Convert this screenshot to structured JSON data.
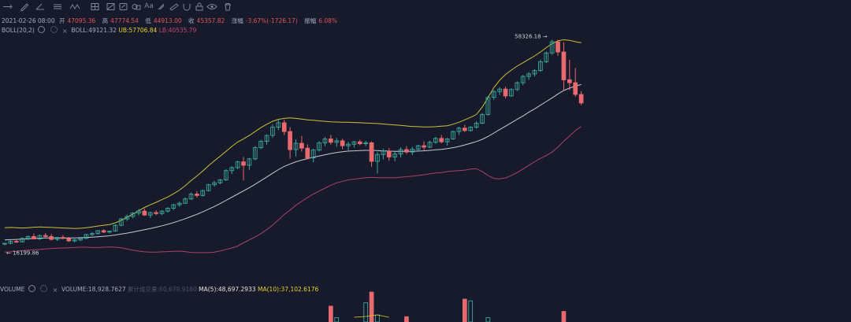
{
  "toolbar": {
    "icons": [
      "menu-icon",
      "pencil-icon",
      "angle-icon",
      "lines-icon",
      "wave-icon",
      "grid-icon",
      "pattern-icon",
      "fib-icon",
      "shapes-icon",
      "text-icon",
      "measure-icon",
      "ruler-icon",
      "magnet-icon",
      "lock-icon",
      "eye-icon",
      "trash-icon"
    ],
    "text_icon_label": "Aa"
  },
  "ohlc": {
    "date": "2021-02-26 08:00",
    "open_label": "开",
    "open": "47095.36",
    "high_label": "高",
    "high": "47774.54",
    "low_label": "低",
    "low": "44913.00",
    "close_label": "收",
    "close": "45357.82",
    "change_label": "涨幅",
    "change": "-3.67%(-1726.17)",
    "amp_label": "振幅",
    "amp": "6.08%"
  },
  "boll": {
    "name": "BOLL(20,2)",
    "mid": "BOLL:49121.32",
    "ub": "UB:57706.84",
    "lb": "LB:40535.79"
  },
  "volume": {
    "name": "VOLUME",
    "value": "VOLUME:18,928.7627",
    "faint": "累计成交量:60,679.9160",
    "ma5": "MA(5):48,697.2933",
    "ma10": "MA(10):37,102.6176"
  },
  "annotations": {
    "high": "58326.18",
    "low": "16199.86"
  },
  "colors": {
    "background": "#161a2b",
    "up": "#3aa89c",
    "down": "#e86a6e",
    "upper_band": "#c9c43a",
    "middle_band": "#c6cad6",
    "lower_band": "#a8436b"
  },
  "chart_data": {
    "type": "candlestick",
    "series": [
      {
        "name": "price",
        "ohlc": [
          [
            16500,
            16700,
            16199.86,
            16600
          ],
          [
            16600,
            17200,
            16400,
            17000
          ],
          [
            17000,
            17500,
            16700,
            16900
          ],
          [
            16900,
            17800,
            16800,
            17600
          ],
          [
            17600,
            18200,
            17300,
            18000
          ],
          [
            18000,
            18600,
            17400,
            17500
          ],
          [
            17500,
            18400,
            17300,
            18200
          ],
          [
            18200,
            18700,
            17800,
            18000
          ],
          [
            18000,
            18500,
            17200,
            17400
          ],
          [
            17400,
            17900,
            17100,
            17800
          ],
          [
            17800,
            18300,
            17400,
            17600
          ],
          [
            17600,
            17900,
            16900,
            17100
          ],
          [
            17100,
            17500,
            16800,
            17300
          ],
          [
            17300,
            17800,
            17000,
            17600
          ],
          [
            17600,
            18500,
            17500,
            18400
          ],
          [
            18400,
            18900,
            18100,
            18600
          ],
          [
            18600,
            19300,
            18400,
            19200
          ],
          [
            19200,
            19500,
            18700,
            18900
          ],
          [
            18900,
            19200,
            18600,
            19100
          ],
          [
            19100,
            20500,
            19000,
            20300
          ],
          [
            20300,
            21800,
            20100,
            21600
          ],
          [
            21600,
            22500,
            21200,
            22100
          ],
          [
            22100,
            23000,
            21700,
            22800
          ],
          [
            22800,
            23600,
            22300,
            23200
          ],
          [
            23200,
            23700,
            22200,
            22400
          ],
          [
            22400,
            23100,
            21800,
            22900
          ],
          [
            22900,
            23400,
            22400,
            22700
          ],
          [
            22700,
            23400,
            22400,
            23200
          ],
          [
            23200,
            24000,
            22900,
            23800
          ],
          [
            23800,
            24700,
            23400,
            24500
          ],
          [
            24500,
            25200,
            24100,
            24800
          ],
          [
            24800,
            26000,
            24700,
            25700
          ],
          [
            25700,
            27000,
            25500,
            26700
          ],
          [
            26700,
            27300,
            26000,
            26400
          ],
          [
            26400,
            27600,
            26200,
            27400
          ],
          [
            27400,
            28800,
            27200,
            28600
          ],
          [
            28600,
            29400,
            28200,
            29000
          ],
          [
            29000,
            29800,
            28700,
            29600
          ],
          [
            29600,
            31800,
            29400,
            31500
          ],
          [
            31500,
            32400,
            30800,
            32100
          ],
          [
            32100,
            33500,
            31800,
            33300
          ],
          [
            33300,
            34300,
            29500,
            32600
          ],
          [
            32600,
            34100,
            31600,
            33900
          ],
          [
            33900,
            36500,
            33600,
            36200
          ],
          [
            36200,
            37800,
            35900,
            37500
          ],
          [
            37500,
            38900,
            36800,
            38700
          ],
          [
            38700,
            41000,
            38200,
            40400
          ],
          [
            40400,
            41900,
            39800,
            41300
          ],
          [
            41300,
            41900,
            38800,
            39500
          ],
          [
            39500,
            40400,
            34000,
            35800
          ],
          [
            35800,
            37900,
            34400,
            37100
          ],
          [
            37100,
            38600,
            35400,
            36100
          ],
          [
            36100,
            36900,
            33800,
            34100
          ],
          [
            34100,
            36000,
            33200,
            35700
          ],
          [
            35700,
            37500,
            35400,
            37200
          ],
          [
            37200,
            38400,
            36500,
            38000
          ],
          [
            38000,
            38800,
            36800,
            37300
          ],
          [
            37300,
            38200,
            36400,
            37600
          ],
          [
            37600,
            38000,
            35900,
            36600
          ],
          [
            36600,
            37400,
            35700,
            36900
          ],
          [
            36900,
            37600,
            36200,
            37400
          ],
          [
            37400,
            37800,
            36700,
            37000
          ],
          [
            37000,
            37600,
            36500,
            37200
          ],
          [
            37200,
            37500,
            32300,
            33400
          ],
          [
            33400,
            35300,
            30900,
            34800
          ],
          [
            34800,
            36000,
            33800,
            35500
          ],
          [
            35500,
            36100,
            33500,
            34300
          ],
          [
            34300,
            35400,
            33400,
            34900
          ],
          [
            34900,
            36300,
            34200,
            35800
          ],
          [
            35800,
            36500,
            34900,
            35300
          ],
          [
            35300,
            36400,
            34700,
            35900
          ],
          [
            35900,
            36800,
            35500,
            36600
          ],
          [
            36600,
            37500,
            35600,
            36300
          ],
          [
            36300,
            37600,
            36100,
            37300
          ],
          [
            37300,
            38400,
            37000,
            38100
          ],
          [
            38100,
            38800,
            37100,
            37400
          ],
          [
            37400,
            38200,
            36600,
            38000
          ],
          [
            38000,
            39700,
            37800,
            39500
          ],
          [
            39500,
            40500,
            38800,
            40200
          ],
          [
            40200,
            40900,
            39400,
            39700
          ],
          [
            39700,
            40600,
            39500,
            40400
          ],
          [
            40400,
            41600,
            40100,
            41200
          ],
          [
            41200,
            43300,
            41000,
            43000
          ],
          [
            43000,
            46800,
            42800,
            46500
          ],
          [
            46500,
            48000,
            46000,
            47700
          ],
          [
            47700,
            48600,
            47000,
            48200
          ],
          [
            48200,
            48700,
            46300,
            46800
          ],
          [
            46800,
            48400,
            46600,
            48100
          ],
          [
            48100,
            49800,
            47800,
            49500
          ],
          [
            49500,
            51100,
            49000,
            50800
          ],
          [
            50800,
            51700,
            50100,
            51300
          ],
          [
            51300,
            52300,
            50800,
            52000
          ],
          [
            52000,
            54200,
            51700,
            53800
          ],
          [
            53800,
            55900,
            53500,
            55600
          ],
          [
            55600,
            58326.18,
            55200,
            57900
          ],
          [
            57900,
            58300,
            55000,
            55800
          ],
          [
            55800,
            57800,
            47800,
            50100
          ],
          [
            50100,
            54200,
            48000,
            49500
          ],
          [
            49500,
            52500,
            46600,
            47100
          ],
          [
            47095.36,
            47774.54,
            44913.0,
            45357.82
          ]
        ]
      },
      {
        "name": "UB",
        "values": [
          19800,
          19850,
          19800,
          19750,
          19800,
          19900,
          19950,
          19900,
          19850,
          19800,
          19750,
          19700,
          19650,
          19700,
          19800,
          19950,
          20150,
          20300,
          20450,
          20800,
          21300,
          21950,
          22600,
          23300,
          23950,
          24500,
          25000,
          25550,
          26100,
          26750,
          27500,
          28400,
          29450,
          30400,
          31400,
          32500,
          33500,
          34450,
          35450,
          36450,
          37350,
          38000,
          38700,
          39500,
          40300,
          41000,
          41600,
          42000,
          42200,
          42300,
          42200,
          42050,
          41900,
          41800,
          41700,
          41600,
          41500,
          41450,
          41400,
          41400,
          41350,
          41300,
          41250,
          41200,
          41150,
          41050,
          40950,
          40850,
          40750,
          40650,
          40550,
          40500,
          40450,
          40450,
          40500,
          40600,
          40700,
          41000,
          41400,
          41900,
          42400,
          43000,
          44500,
          46500,
          48500,
          50000,
          51200,
          52100,
          52900,
          53600,
          54300,
          55000,
          55800,
          56700,
          57500,
          58100,
          58300,
          58200,
          57900,
          57706.84
        ]
      },
      {
        "name": "BOLL",
        "values": [
          17300,
          17350,
          17400,
          17450,
          17500,
          17600,
          17650,
          17700,
          17700,
          17700,
          17700,
          17700,
          17700,
          17750,
          17800,
          17850,
          17950,
          18050,
          18150,
          18300,
          18500,
          18700,
          18900,
          19150,
          19400,
          19650,
          19900,
          20200,
          20500,
          20850,
          21250,
          21650,
          22100,
          22550,
          23050,
          23600,
          24150,
          24750,
          25400,
          26050,
          26700,
          27350,
          28000,
          28700,
          29450,
          30200,
          30950,
          31700,
          32350,
          32850,
          33300,
          33650,
          33950,
          34250,
          34500,
          34750,
          35000,
          35200,
          35350,
          35500,
          35550,
          35600,
          35650,
          35650,
          35600,
          35550,
          35500,
          35450,
          35450,
          35450,
          35450,
          35500,
          35550,
          35650,
          35750,
          35850,
          36000,
          36200,
          36450,
          36750,
          37100,
          37450,
          37900,
          38500,
          39200,
          39900,
          40600,
          41300,
          42000,
          42700,
          43450,
          44150,
          44900,
          45650,
          46400,
          47200,
          47900,
          48400,
          48800,
          49121.32
        ]
      },
      {
        "name": "LB",
        "values": [
          14800,
          14850,
          14950,
          15100,
          15200,
          15300,
          15350,
          15450,
          15550,
          15600,
          15650,
          15700,
          15750,
          15800,
          15800,
          15750,
          15750,
          15800,
          15850,
          15800,
          15700,
          15450,
          15200,
          15000,
          14850,
          14800,
          14800,
          14850,
          14900,
          14950,
          15000,
          14900,
          14750,
          14700,
          14700,
          14700,
          14800,
          15050,
          15350,
          15650,
          16050,
          16700,
          17300,
          17900,
          18600,
          19400,
          20300,
          21400,
          22500,
          23400,
          24400,
          25200,
          26000,
          26700,
          27300,
          27900,
          28500,
          29000,
          29300,
          29600,
          29750,
          29900,
          30050,
          30100,
          30050,
          30050,
          30050,
          30050,
          30150,
          30250,
          30350,
          30500,
          30650,
          30850,
          31000,
          31100,
          31300,
          31400,
          31500,
          31600,
          31800,
          31900,
          31300,
          30500,
          29900,
          29800,
          30000,
          30500,
          31100,
          31800,
          32600,
          33300,
          34000,
          34600,
          35300,
          36300,
          37500,
          38600,
          39700,
          40535.79
        ]
      }
    ],
    "volumes": [
      {
        "index": 56,
        "value": 18000
      },
      {
        "index": 57,
        "value": 5000
      },
      {
        "index": 62,
        "value": 22000
      },
      {
        "index": 63,
        "value": 34000
      },
      {
        "index": 64,
        "value": 8000
      },
      {
        "index": 69,
        "value": 6000
      },
      {
        "index": 79,
        "value": 26000
      },
      {
        "index": 80,
        "value": 24000
      },
      {
        "index": 83,
        "value": 5000
      },
      {
        "index": 96,
        "value": 12000
      }
    ],
    "ylabel": "",
    "xlabel": ""
  }
}
